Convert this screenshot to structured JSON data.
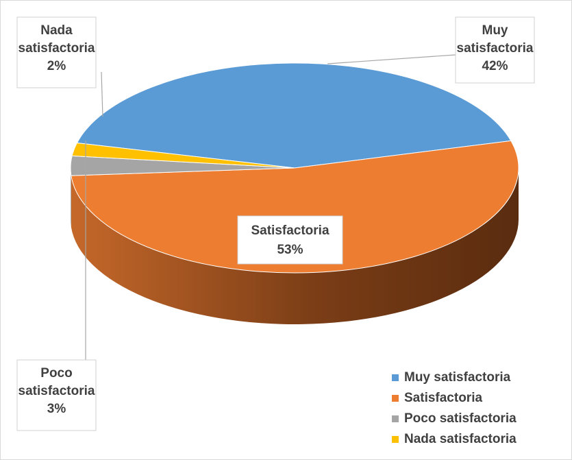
{
  "chart_data": {
    "type": "pie",
    "categories": [
      "Muy satisfactoria",
      "Satisfactoria",
      "Poco satisfactoria",
      "Nada satisfactoria"
    ],
    "values": [
      42,
      53,
      3,
      2
    ],
    "value_labels": [
      "42%",
      "53%",
      "3%",
      "2%"
    ],
    "colors": [
      "#5b9bd5",
      "#ed7d31",
      "#a5a5a5",
      "#ffc000"
    ],
    "legend": "bottom-right"
  }
}
